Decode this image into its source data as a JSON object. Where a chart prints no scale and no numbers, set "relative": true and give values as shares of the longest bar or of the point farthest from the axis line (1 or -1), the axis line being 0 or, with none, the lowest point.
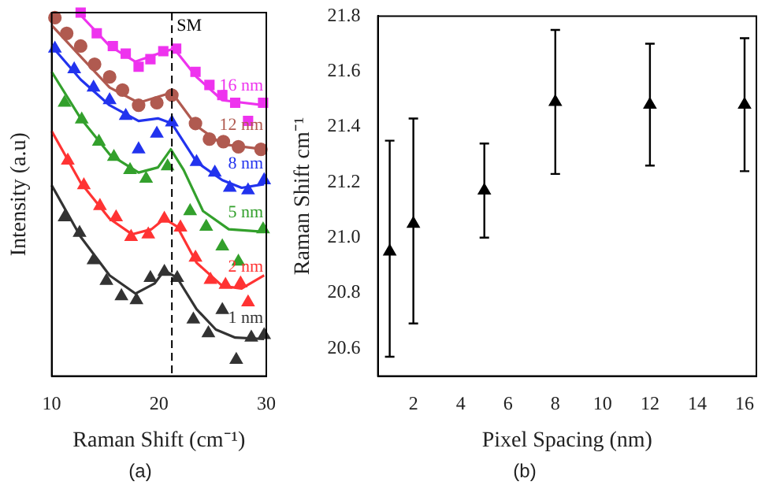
{
  "chart_data": [
    {
      "type": "scatter",
      "relative": true,
      "xlabel": "Raman Shift (cm⁻¹)",
      "ylabel": "Intensity (a.u)",
      "xlim": [
        10,
        30
      ],
      "xticks": [
        10,
        20,
        30
      ],
      "tick_labels": "x",
      "grid": false,
      "annotations": [
        "(a)"
      ],
      "ref_lines": [
        {
          "axis": "x",
          "value": 21.2,
          "label": "SM",
          "color": "#000000",
          "line_style": "dashed"
        }
      ],
      "series": [
        {
          "name": "1 nm",
          "type": "scatter",
          "marker": "triangle",
          "color": "#333333",
          "x": [
            11.2,
            12.6,
            13.9,
            15.1,
            16.5,
            17.9,
            19.2,
            20.5,
            21.7,
            23.2,
            24.6,
            25.9,
            27.2,
            28.6,
            29.8
          ],
          "values": [
            0.437,
            0.394,
            0.319,
            0.262,
            0.22,
            0.209,
            0.27,
            0.287,
            0.27,
            0.156,
            0.118,
            0.182,
            0.045,
            0.106,
            0.113
          ]
        },
        {
          "type": "line",
          "marker": "none",
          "color": "#333333",
          "x": [
            10,
            12.7,
            15.4,
            17.8,
            19.6,
            20.5,
            21.7,
            23.5,
            25.3,
            27.1,
            29.8
          ],
          "values": [
            0.525,
            0.383,
            0.277,
            0.227,
            0.255,
            0.291,
            0.27,
            0.184,
            0.128,
            0.106,
            0.102
          ]
        },
        {
          "name": "2 nm",
          "type": "scatter",
          "marker": "triangle",
          "color": "#ff3333",
          "x": [
            11.5,
            13,
            14.5,
            16,
            17.4,
            19,
            20.5,
            22,
            23.4,
            24.8,
            26.2,
            27.6,
            28.3
          ],
          "values": [
            0.593,
            0.525,
            0.468,
            0.437,
            0.383,
            0.39,
            0.433,
            0.409,
            0.326,
            0.265,
            0.251,
            0.255,
            0.203
          ]
        },
        {
          "type": "line",
          "marker": "none",
          "color": "#ff3333",
          "x": [
            10,
            12.7,
            15.4,
            17.5,
            19.3,
            20.5,
            21.7,
            23.5,
            25.9,
            27.7,
            29.8
          ],
          "values": [
            0.674,
            0.532,
            0.433,
            0.39,
            0.404,
            0.433,
            0.411,
            0.312,
            0.248,
            0.241,
            0.277
          ]
        },
        {
          "name": "5 nm",
          "type": "scatter",
          "marker": "triangle",
          "color": "#33a02c",
          "x": [
            11.2,
            12.8,
            14.4,
            15.8,
            17.3,
            18.8,
            20.8,
            22.9,
            24.4,
            25.9,
            27.4,
            29.7
          ],
          "values": [
            0.752,
            0.706,
            0.645,
            0.603,
            0.567,
            0.543,
            0.577,
            0.454,
            0.411,
            0.357,
            0.315,
            0.404
          ]
        },
        {
          "type": "line",
          "marker": "none",
          "color": "#33a02c",
          "x": [
            10,
            12.7,
            15.4,
            18.1,
            19.9,
            21.1,
            22.3,
            24.1,
            26.5,
            29.8
          ],
          "values": [
            0.837,
            0.709,
            0.61,
            0.56,
            0.574,
            0.624,
            0.567,
            0.454,
            0.404,
            0.397
          ]
        },
        {
          "name": "8 nm",
          "type": "scatter",
          "marker": "triangle",
          "color": "#2233ee",
          "x": [
            10.3,
            12.1,
            13.9,
            15.4,
            16.9,
            18.1,
            19.8,
            21.2,
            23.5,
            25.2,
            26.6,
            28.3,
            29.8
          ],
          "values": [
            0.901,
            0.844,
            0.794,
            0.759,
            0.716,
            0.624,
            0.667,
            0.698,
            0.589,
            0.56,
            0.518,
            0.511,
            0.539
          ]
        },
        {
          "type": "line",
          "marker": "none",
          "color": "#2233ee",
          "x": [
            10,
            12.7,
            15.4,
            18.1,
            19.9,
            21.2,
            23.5,
            25.9,
            27.7,
            29.8
          ],
          "values": [
            0.908,
            0.816,
            0.745,
            0.702,
            0.709,
            0.695,
            0.589,
            0.539,
            0.518,
            0.528
          ]
        },
        {
          "name": "12 nm",
          "type": "scatter",
          "marker": "circle",
          "color": "#b05a50",
          "x": [
            10.3,
            11.4,
            12.7,
            14,
            15.4,
            16.6,
            18.1,
            19.8,
            21.2,
            23.4,
            24.7,
            26,
            27.4,
            29.5
          ],
          "values": [
            0.986,
            0.943,
            0.908,
            0.858,
            0.823,
            0.787,
            0.745,
            0.752,
            0.773,
            0.695,
            0.652,
            0.645,
            0.631,
            0.624
          ]
        },
        {
          "type": "line",
          "marker": "none",
          "color": "#b05a50",
          "x": [
            10,
            12.7,
            15.4,
            18.1,
            21.2,
            23.5,
            25.9,
            29.8
          ],
          "values": [
            0.965,
            0.879,
            0.794,
            0.752,
            0.78,
            0.688,
            0.638,
            0.624
          ]
        },
        {
          "name": "16 nm",
          "type": "scatter",
          "marker": "square",
          "color": "#ee33ee",
          "x": [
            12.7,
            14.2,
            15.7,
            16.9,
            18.1,
            19.2,
            20.4,
            21.6,
            23.4,
            24.7,
            25.9,
            27.1,
            28.3,
            29.7
          ],
          "values": [
            1.0,
            0.943,
            0.908,
            0.887,
            0.851,
            0.872,
            0.894,
            0.901,
            0.837,
            0.801,
            0.773,
            0.752,
            0.702,
            0.752
          ]
        },
        {
          "type": "line",
          "marker": "none",
          "color": "#ee33ee",
          "x": [
            12.7,
            15.4,
            17.8,
            19.9,
            21.4,
            23.5,
            25.9,
            29.8
          ],
          "values": [
            0.993,
            0.908,
            0.865,
            0.887,
            0.901,
            0.823,
            0.759,
            0.745
          ]
        }
      ]
    },
    {
      "type": "scatter",
      "xlabel": "Pixel Spacing (nm)",
      "ylabel": "Raman Shift cm⁻¹",
      "xlim": [
        0.5,
        16.5
      ],
      "xticks": [
        2,
        4,
        6,
        8,
        10,
        12,
        14,
        16
      ],
      "ylim": [
        20.5,
        21.8
      ],
      "yticks": [
        20.6,
        20.8,
        {
          "value": 21,
          "label": "21.0"
        },
        21.2,
        21.4,
        21.6,
        21.8
      ],
      "grid": false,
      "marker": "triangle",
      "annotations": [
        "(b)"
      ],
      "series": [
        {
          "color": "#000000",
          "x": [
            1,
            2,
            5,
            8,
            12,
            16
          ],
          "values": [
            20.95,
            21.05,
            21.17,
            21.49,
            21.48,
            21.48
          ],
          "errors": [
            [
              20.57,
              21.35
            ],
            [
              20.69,
              21.43
            ],
            [
              21.0,
              21.34
            ],
            [
              21.23,
              21.75
            ],
            [
              21.26,
              21.7
            ],
            [
              21.24,
              21.72
            ]
          ]
        }
      ]
    }
  ]
}
